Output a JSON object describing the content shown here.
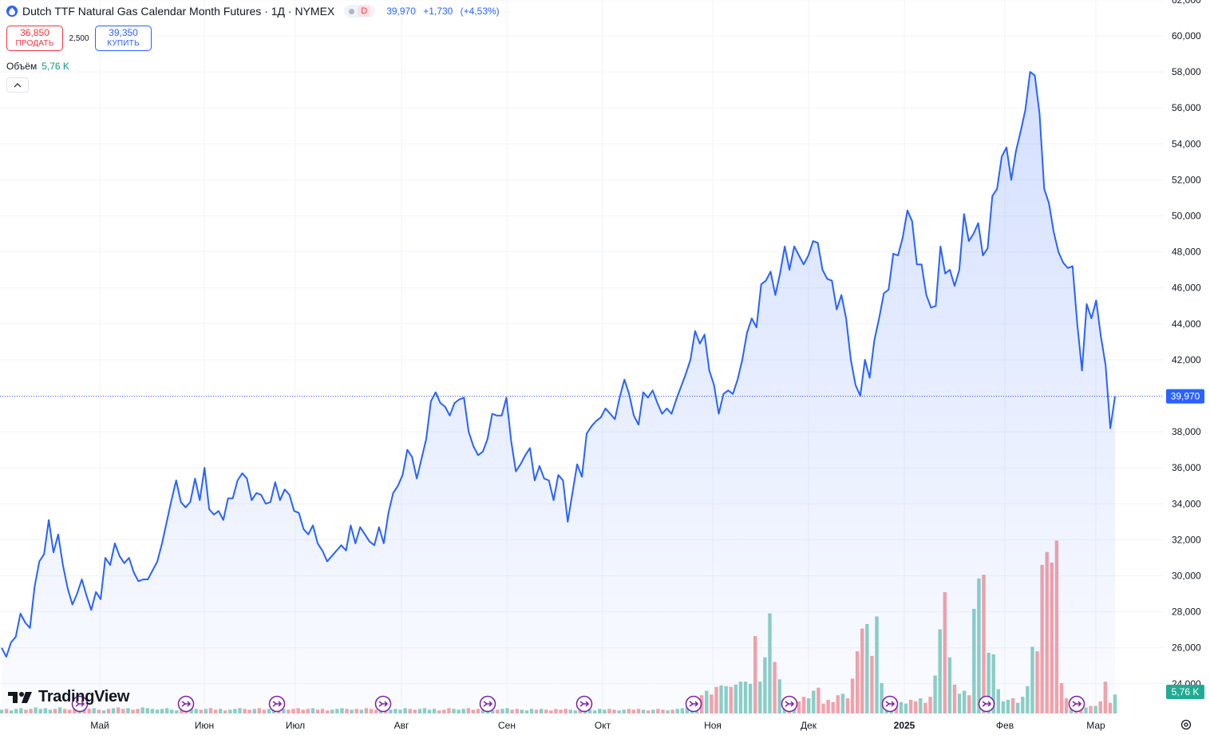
{
  "header": {
    "title": "Dutch TTF Natural Gas Calendar Month Futures · 1Д · NYMEX",
    "badge": "D",
    "last_price": "39,970",
    "change": "+1,730",
    "change_pct": "(+4,53%)"
  },
  "trade": {
    "sell_price": "36,850",
    "sell_label": "ПРОДАТЬ",
    "spread": "2,500",
    "buy_price": "39,350",
    "buy_label": "КУПИТЬ"
  },
  "volume_legend": {
    "label": "Объём",
    "value": "5,76 K"
  },
  "logo_text": "TradingView",
  "colors": {
    "line": "#2962ff",
    "vol_up": "#8dd0c4",
    "vol_down": "#f5a3a8",
    "price_label_bg": "#2962ff",
    "vol_label_bg": "#22ab94"
  },
  "chart_data": {
    "type": "area",
    "y_axis_labels": [
      "24,000",
      "26,000",
      "28,000",
      "30,000",
      "32,000",
      "34,000",
      "36,000",
      "38,000",
      "40,000",
      "42,000",
      "44,000",
      "46,000",
      "48,000",
      "50,000",
      "52,000",
      "54,000",
      "56,000",
      "58,000",
      "60,000",
      "62,000"
    ],
    "ylim": [
      23000,
      62000
    ],
    "x_axis_labels": [
      "Май",
      "Июн",
      "Июл",
      "Авг",
      "Сен",
      "Окт",
      "Ноя",
      "Дек",
      "2025",
      "Фев",
      "Мар"
    ],
    "last_price_label": "39,970",
    "last_volume_label": "5,76 K",
    "series": [
      {
        "values": [
          26.0,
          25.5,
          26.3,
          26.6,
          27.9,
          27.4,
          27.1,
          29.4,
          30.8,
          31.2,
          33.1,
          31.3,
          32.3,
          30.6,
          29.3,
          28.4,
          29.0,
          29.8,
          28.9,
          28.1,
          29.1,
          28.7,
          31.0,
          30.6,
          31.8,
          31.1,
          30.7,
          31.0,
          30.2,
          29.7,
          29.8,
          29.8,
          30.3,
          30.8,
          31.8,
          33.0,
          34.2,
          35.3,
          34.1,
          33.8,
          34.1,
          35.4,
          34.2,
          36.0,
          33.7,
          33.4,
          33.6,
          33.1,
          34.3,
          34.3,
          35.3,
          35.7,
          35.4,
          34.2,
          34.6,
          34.5,
          34.0,
          34.1,
          35.2,
          34.2,
          34.8,
          34.5,
          33.6,
          33.5,
          32.6,
          32.3,
          32.8,
          31.8,
          31.4,
          30.8,
          31.1,
          31.4,
          31.7,
          31.4,
          32.8,
          31.8,
          32.7,
          32.3,
          31.9,
          31.7,
          32.7,
          31.8,
          33.5,
          34.6,
          35.0,
          35.6,
          37.0,
          36.6,
          35.4,
          36.5,
          37.6,
          39.7,
          40.2,
          39.6,
          39.4,
          38.9,
          39.6,
          39.8,
          39.9,
          38.0,
          37.2,
          36.7,
          36.9,
          37.6,
          39.0,
          38.9,
          38.9,
          39.9,
          37.5,
          35.8,
          36.2,
          36.7,
          37.1,
          35.3,
          36.1,
          35.4,
          35.3,
          34.2,
          35.6,
          35.3,
          33.0,
          34.6,
          36.2,
          35.5,
          37.9,
          38.3,
          38.6,
          38.8,
          39.3,
          39.0,
          38.7,
          39.9,
          40.9,
          40.1,
          38.9,
          38.4,
          40.2,
          39.9,
          40.3,
          39.6,
          39.0,
          39.3,
          39.0,
          39.8,
          40.5,
          41.2,
          42.0,
          43.6,
          42.9,
          43.4,
          41.4,
          40.6,
          39.0,
          40.1,
          40.3,
          40.1,
          40.9,
          42.0,
          43.5,
          44.3,
          43.8,
          46.2,
          46.4,
          46.9,
          45.6,
          46.8,
          48.3,
          47.0,
          48.3,
          47.8,
          47.3,
          47.8,
          48.6,
          48.5,
          47.0,
          46.5,
          46.4,
          44.8,
          45.6,
          44.3,
          42.0,
          40.6,
          40.0,
          42.0,
          41.0,
          43.1,
          44.3,
          45.7,
          45.9,
          47.9,
          47.8,
          48.8,
          50.3,
          49.7,
          47.3,
          47.3,
          45.6,
          44.9,
          45.0,
          48.3,
          46.8,
          47.0,
          46.1,
          47.0,
          50.1,
          48.6,
          49.0,
          49.6,
          47.8,
          48.2,
          51.1,
          51.5,
          53.3,
          53.8,
          52.0,
          53.6,
          54.7,
          55.9,
          58.0,
          57.8,
          55.7,
          51.5,
          50.7,
          49.1,
          48.0,
          47.4,
          47.1,
          47.2,
          44.0,
          41.4,
          45.1,
          44.3,
          45.3,
          43.3,
          41.7,
          38.2,
          39.97
        ]
      }
    ],
    "volume": {
      "values": [
        0.5,
        0.6,
        0.4,
        0.6,
        0.7,
        0.5,
        0.6,
        0.8,
        0.6,
        0.7,
        0.5,
        0.6,
        0.8,
        0.6,
        0.5,
        0.7,
        0.6,
        0.5,
        0.6,
        0.7,
        0.5,
        0.4,
        0.6,
        0.7,
        0.8,
        0.6,
        0.7,
        0.5,
        0.6,
        0.8,
        0.7,
        0.6,
        0.5,
        0.6,
        0.7,
        0.5,
        0.4,
        0.6,
        0.5,
        0.7,
        0.6,
        0.5,
        0.6,
        0.7,
        0.5,
        0.6,
        0.4,
        0.5,
        0.6,
        0.7,
        0.6,
        0.5,
        0.6,
        0.7,
        0.5,
        0.6,
        0.5,
        0.4,
        0.6,
        0.5,
        0.6,
        0.7,
        0.5,
        0.6,
        0.7,
        0.5,
        0.6,
        0.4,
        0.5,
        0.6,
        0.7,
        0.6,
        0.5,
        0.6,
        0.5,
        0.7,
        0.6,
        0.5,
        0.4,
        0.6,
        0.5,
        0.6,
        0.5,
        0.7,
        0.6,
        0.5,
        0.6,
        0.7,
        0.5,
        0.6,
        0.4,
        0.5,
        0.7,
        0.6,
        0.5,
        0.6,
        0.7,
        0.5,
        0.6,
        0.5,
        0.6,
        0.4,
        0.5,
        0.6,
        0.7,
        0.5,
        0.6,
        0.5,
        0.4,
        0.6,
        0.5,
        0.6,
        0.5,
        0.4,
        0.6,
        0.5,
        0.6,
        0.5,
        0.4,
        0.5,
        0.6,
        0.5,
        0.4,
        0.6,
        0.5,
        0.6,
        0.5,
        0.4,
        0.5,
        0.6,
        0.5,
        0.6,
        0.5,
        0.4,
        0.5,
        0.6,
        0.5,
        0.4,
        0.5,
        0.6,
        0.7,
        0.8,
        1.2,
        1.7,
        2.4,
        3.0,
        2.5,
        3.5,
        3.7,
        3.6,
        3.5,
        3.8,
        4.2,
        4.2,
        3.9,
        10.2,
        4.2,
        7.4,
        13.2,
        6.8,
        4.5,
        2.0,
        1.8,
        1.4,
        1.6,
        2.2,
        2.0,
        3.0,
        3.4,
        1.3,
        1.8,
        1.5,
        2.4,
        2.6,
        2.0,
        4.6,
        8.2,
        11.2,
        11.8,
        7.6,
        12.8,
        4.0,
        2.0,
        1.6,
        1.2,
        1.5,
        1.3,
        1.8,
        1.6,
        2.0,
        1.4,
        2.2,
        5.0,
        11.1,
        16.0,
        7.4,
        3.8,
        2.6,
        3.0,
        2.4,
        13.8,
        17.8,
        18.3,
        8.0,
        7.8,
        3.2,
        1.6,
        1.8,
        2.0,
        1.4,
        2.2,
        3.6,
        8.8,
        8.2,
        19.6,
        21.3,
        19.9,
        22.8,
        4.0,
        2.0,
        1.5,
        1.0,
        1.2,
        0.8,
        1.0,
        1.0,
        1.6,
        4.2,
        1.4,
        2.5
      ]
    }
  }
}
